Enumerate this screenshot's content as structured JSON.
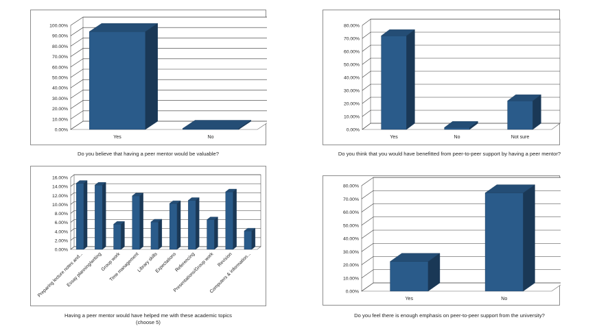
{
  "chart_data": [
    {
      "type": "bar",
      "title": "",
      "categories": [
        "Yes",
        "No"
      ],
      "values": [
        94.0,
        1.0
      ],
      "ylim": [
        0,
        100
      ],
      "ytick_labels": [
        "0.00%",
        "10.00%",
        "20.00%",
        "30.00%",
        "40.00%",
        "50.00%",
        "60.00%",
        "70.00%",
        "80.00%",
        "90.00%",
        "100.00%"
      ],
      "caption": "Do you believe that having a peer mentor would be valuable?",
      "color": "#2a5b8a"
    },
    {
      "type": "bar",
      "title": "",
      "categories": [
        "Yes",
        "No",
        "Not sure"
      ],
      "values": [
        72.0,
        1.5,
        22.0
      ],
      "ylim": [
        0,
        80
      ],
      "ytick_labels": [
        "0.00%",
        "10.00%",
        "20.00%",
        "30.00%",
        "40.00%",
        "50.00%",
        "60.00%",
        "70.00%",
        "80.00%"
      ],
      "caption": "Do you think that you would have benefitted from peer-to-peer support by having a peer mentor?",
      "color": "#2a5b8a"
    },
    {
      "type": "bar",
      "title": "",
      "categories": [
        "Preparing lecture notes and...",
        "Essay planning/writing",
        "Group work",
        "Time management",
        "Library skills",
        "Expectations",
        "Referencing",
        "Presentations/Group work",
        "Revision",
        "Computers & information..."
      ],
      "values": [
        14.7,
        14.3,
        5.6,
        11.9,
        6.1,
        10.2,
        10.9,
        6.6,
        12.8,
        4.1
      ],
      "ylim": [
        0,
        16
      ],
      "ytick_labels": [
        "0.00%",
        "2.00%",
        "4.00%",
        "6.00%",
        "8.00%",
        "10.00%",
        "12.00%",
        "14.00%",
        "16.00%"
      ],
      "caption_lines": [
        "Having a peer mentor would have helped me with these academic topics",
        "(choose 5)"
      ],
      "color": "#2a5b8a"
    },
    {
      "type": "bar",
      "title": "",
      "categories": [
        "Yes",
        "No"
      ],
      "values": [
        22.5,
        74.5
      ],
      "ylim": [
        0,
        80
      ],
      "ytick_labels": [
        "0.00%",
        "10.00%",
        "20.00%",
        "30.00%",
        "40.00%",
        "50.00%",
        "60.00%",
        "70.00%",
        "80.00%"
      ],
      "caption": "Do you feel there is enough emphasis on peer-to-peer support from the university?",
      "color": "#2a5b8a"
    }
  ]
}
